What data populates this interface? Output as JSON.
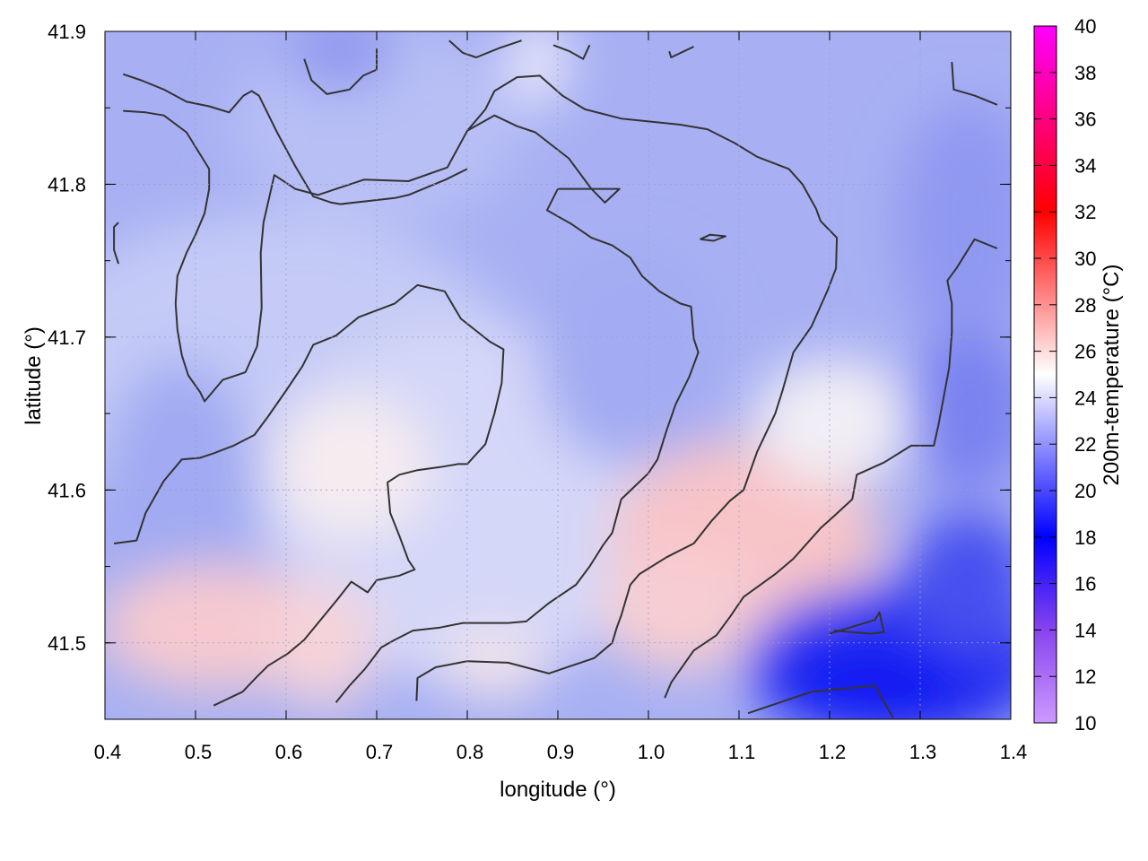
{
  "chart_data": {
    "type": "heatmap",
    "xlabel": "longitude (°)",
    "ylabel": "latitude (°)",
    "colorbar_label": "200m-temperature (°C)",
    "xlim": [
      0.4,
      1.4
    ],
    "ylim": [
      41.45,
      41.9
    ],
    "x_ticks": [
      "0.4",
      "0.5",
      "0.6",
      "0.7",
      "0.8",
      "0.9",
      "1.0",
      "1.1",
      "1.2",
      "1.3",
      "1.4"
    ],
    "y_ticks": [
      "41.5",
      "41.6",
      "41.7",
      "41.8",
      "41.9"
    ],
    "x_tick_values": [
      0.4,
      0.5,
      0.6,
      0.7,
      0.8,
      0.9,
      1.0,
      1.1,
      1.2,
      1.3,
      1.4
    ],
    "y_tick_values": [
      41.5,
      41.6,
      41.7,
      41.8,
      41.9
    ],
    "colorbar_range": [
      10,
      40
    ],
    "colorbar_ticks": [
      "10",
      "12",
      "14",
      "16",
      "18",
      "20",
      "22",
      "24",
      "26",
      "28",
      "30",
      "32",
      "34",
      "36",
      "38",
      "40"
    ],
    "colorbar_tick_values": [
      10,
      12,
      14,
      16,
      18,
      20,
      22,
      24,
      26,
      28,
      30,
      32,
      34,
      36,
      38,
      40
    ],
    "colormap_stops": [
      {
        "value": 10,
        "color": "#cc99ff"
      },
      {
        "value": 14,
        "color": "#8844ee"
      },
      {
        "value": 18,
        "color": "#0000ff"
      },
      {
        "value": 25,
        "color": "#ffffff"
      },
      {
        "value": 32,
        "color": "#ff0000"
      },
      {
        "value": 40,
        "color": "#ff00ff"
      }
    ],
    "grid": true,
    "approx_field_summary": [
      {
        "region": "north and west",
        "value_range": [
          20,
          22
        ]
      },
      {
        "region": "central basin",
        "value_range": [
          22,
          24
        ]
      },
      {
        "region": "southwest ridges",
        "value_range": [
          25,
          27
        ]
      },
      {
        "region": "central-south band (lon 0.95-1.15)",
        "value_range": [
          26,
          27
        ]
      },
      {
        "region": "southeast corner",
        "value_range": [
          17,
          19
        ]
      }
    ],
    "contour_color": "#333333",
    "contours": [
      [
        [
          0.42,
          41.872
        ],
        [
          0.44,
          41.868
        ],
        [
          0.465,
          41.862
        ],
        [
          0.49,
          41.854
        ],
        [
          0.515,
          41.851
        ],
        [
          0.537,
          41.847
        ],
        [
          0.553,
          41.858
        ],
        [
          0.562,
          41.861
        ],
        [
          0.57,
          41.858
        ],
        [
          0.59,
          41.834
        ],
        [
          0.61,
          41.812
        ],
        [
          0.63,
          41.792
        ],
        [
          0.65,
          41.788
        ],
        [
          0.66,
          41.787
        ],
        [
          0.72,
          41.791
        ],
        [
          0.735,
          41.793
        ],
        [
          0.776,
          41.803
        ],
        [
          0.8,
          41.81
        ],
        [
          0.8,
          41.81
        ]
      ],
      [
        [
          0.62,
          41.882
        ],
        [
          0.628,
          41.868
        ],
        [
          0.645,
          41.859
        ],
        [
          0.67,
          41.862
        ],
        [
          0.685,
          41.871
        ],
        [
          0.7,
          41.875
        ],
        [
          0.7,
          41.889
        ]
      ],
      [
        [
          0.78,
          41.894
        ],
        [
          0.795,
          41.886
        ],
        [
          0.81,
          41.883
        ],
        [
          0.835,
          41.889
        ],
        [
          0.86,
          41.894
        ]
      ],
      [
        [
          0.895,
          41.891
        ],
        [
          0.913,
          41.887
        ],
        [
          0.928,
          41.882
        ],
        [
          0.935,
          41.891
        ]
      ],
      [
        [
          1.023,
          41.887
        ],
        [
          1.025,
          41.883
        ],
        [
          1.05,
          41.89
        ]
      ],
      [
        [
          0.42,
          41.848
        ],
        [
          0.445,
          41.847
        ],
        [
          0.465,
          41.845
        ],
        [
          0.49,
          41.834
        ],
        [
          0.515,
          41.81
        ],
        [
          0.515,
          41.797
        ],
        [
          0.51,
          41.781
        ],
        [
          0.5,
          41.767
        ],
        [
          0.49,
          41.755
        ],
        [
          0.48,
          41.74
        ],
        [
          0.478,
          41.722
        ],
        [
          0.48,
          41.705
        ],
        [
          0.482,
          41.698
        ],
        [
          0.485,
          41.688
        ],
        [
          0.492,
          41.675
        ],
        [
          0.505,
          41.664
        ],
        [
          0.51,
          41.658
        ],
        [
          0.53,
          41.672
        ],
        [
          0.555,
          41.677
        ],
        [
          0.568,
          41.694
        ],
        [
          0.573,
          41.719
        ],
        [
          0.572,
          41.755
        ],
        [
          0.575,
          41.775
        ],
        [
          0.587,
          41.806
        ],
        [
          0.61,
          41.797
        ],
        [
          0.635,
          41.793
        ],
        [
          0.686,
          41.803
        ],
        [
          0.735,
          41.802
        ],
        [
          0.778,
          41.811
        ],
        [
          0.8,
          41.835
        ],
        [
          0.83,
          41.845
        ],
        [
          0.855,
          41.838
        ],
        [
          0.875,
          41.834
        ],
        [
          0.912,
          41.817
        ],
        [
          0.937,
          41.797
        ],
        [
          0.952,
          41.788
        ],
        [
          0.968,
          41.797
        ],
        [
          0.948,
          41.797
        ],
        [
          0.9,
          41.797
        ],
        [
          0.888,
          41.783
        ],
        [
          0.915,
          41.774
        ],
        [
          0.937,
          41.765
        ],
        [
          0.96,
          41.76
        ],
        [
          0.98,
          41.752
        ],
        [
          0.993,
          41.74
        ],
        [
          1.012,
          41.73
        ],
        [
          1.035,
          41.722
        ],
        [
          1.047,
          41.72
        ],
        [
          1.05,
          41.699
        ],
        [
          1.055,
          41.69
        ],
        [
          1.045,
          41.674
        ],
        [
          1.03,
          41.656
        ],
        [
          1.02,
          41.639
        ],
        [
          1.01,
          41.62
        ],
        [
          1.0,
          41.611
        ],
        [
          0.97,
          41.594
        ],
        [
          0.96,
          41.572
        ],
        [
          0.95,
          41.564
        ],
        [
          0.935,
          41.55
        ],
        [
          0.92,
          41.538
        ],
        [
          0.89,
          41.526
        ],
        [
          0.865,
          41.514
        ],
        [
          0.845,
          41.513
        ],
        [
          0.795,
          41.513
        ],
        [
          0.77,
          41.51
        ],
        [
          0.74,
          41.508
        ],
        [
          0.72,
          41.502
        ],
        [
          0.705,
          41.497
        ],
        [
          0.687,
          41.483
        ],
        [
          0.67,
          41.472
        ],
        [
          0.655,
          41.461
        ]
      ],
      [
        [
          0.41,
          41.565
        ],
        [
          0.435,
          41.567
        ],
        [
          0.445,
          41.585
        ],
        [
          0.465,
          41.606
        ],
        [
          0.485,
          41.62
        ],
        [
          0.505,
          41.621
        ],
        [
          0.52,
          41.624
        ],
        [
          0.542,
          41.629
        ],
        [
          0.565,
          41.636
        ],
        [
          0.58,
          41.648
        ],
        [
          0.6,
          41.665
        ],
        [
          0.618,
          41.681
        ],
        [
          0.63,
          41.695
        ],
        [
          0.655,
          41.701
        ],
        [
          0.68,
          41.713
        ],
        [
          0.72,
          41.722
        ],
        [
          0.745,
          41.734
        ],
        [
          0.775,
          41.73
        ],
        [
          0.793,
          41.712
        ],
        [
          0.825,
          41.697
        ],
        [
          0.84,
          41.692
        ],
        [
          0.838,
          41.67
        ],
        [
          0.83,
          41.65
        ],
        [
          0.82,
          41.63
        ],
        [
          0.8,
          41.617
        ],
        [
          0.79,
          41.617
        ],
        [
          0.77,
          41.615
        ],
        [
          0.745,
          41.613
        ],
        [
          0.725,
          41.61
        ],
        [
          0.712,
          41.605
        ],
        [
          0.715,
          41.585
        ],
        [
          0.725,
          41.57
        ],
        [
          0.735,
          41.554
        ],
        [
          0.742,
          41.548
        ],
        [
          0.725,
          41.544
        ],
        [
          0.7,
          41.541
        ],
        [
          0.69,
          41.533
        ],
        [
          0.672,
          41.54
        ],
        [
          0.656,
          41.528
        ],
        [
          0.62,
          41.502
        ],
        [
          0.602,
          41.493
        ],
        [
          0.58,
          41.485
        ],
        [
          0.568,
          41.478
        ],
        [
          0.552,
          41.468
        ],
        [
          0.52,
          41.459
        ]
      ],
      [
        [
          0.744,
          41.462
        ],
        [
          0.745,
          41.477
        ],
        [
          0.765,
          41.484
        ],
        [
          0.8,
          41.488
        ],
        [
          0.845,
          41.487
        ],
        [
          0.89,
          41.48
        ],
        [
          0.925,
          41.487
        ],
        [
          0.94,
          41.49
        ],
        [
          0.96,
          41.5
        ],
        [
          0.965,
          41.51
        ],
        [
          0.97,
          41.518
        ],
        [
          0.98,
          41.538
        ],
        [
          0.99,
          41.545
        ],
        [
          1.02,
          41.556
        ],
        [
          1.05,
          41.565
        ],
        [
          1.07,
          41.58
        ],
        [
          1.09,
          41.593
        ],
        [
          1.105,
          41.6
        ],
        [
          1.12,
          41.625
        ],
        [
          1.14,
          41.65
        ],
        [
          1.148,
          41.665
        ],
        [
          1.16,
          41.69
        ],
        [
          1.18,
          41.707
        ],
        [
          1.198,
          41.731
        ],
        [
          1.207,
          41.745
        ],
        [
          1.208,
          41.765
        ],
        [
          1.19,
          41.776
        ],
        [
          1.185,
          41.784
        ],
        [
          1.17,
          41.8
        ],
        [
          1.155,
          41.81
        ],
        [
          1.12,
          41.818
        ],
        [
          1.095,
          41.827
        ],
        [
          1.065,
          41.836
        ],
        [
          1.035,
          41.839
        ],
        [
          0.97,
          41.843
        ],
        [
          0.93,
          41.849
        ],
        [
          0.905,
          41.858
        ],
        [
          0.88,
          41.871
        ],
        [
          0.855,
          41.87
        ],
        [
          0.83,
          41.861
        ],
        [
          0.82,
          41.849
        ],
        [
          0.8,
          41.835
        ]
      ],
      [
        [
          1.018,
          41.464
        ],
        [
          1.025,
          41.474
        ],
        [
          1.05,
          41.495
        ],
        [
          1.075,
          41.505
        ],
        [
          1.09,
          41.517
        ],
        [
          1.105,
          41.53
        ],
        [
          1.14,
          41.545
        ],
        [
          1.16,
          41.555
        ],
        [
          1.19,
          41.575
        ],
        [
          1.205,
          41.583
        ],
        [
          1.225,
          41.594
        ],
        [
          1.23,
          41.61
        ],
        [
          1.26,
          41.618
        ],
        [
          1.29,
          41.629
        ],
        [
          1.315,
          41.629
        ],
        [
          1.32,
          41.642
        ],
        [
          1.325,
          41.658
        ],
        [
          1.332,
          41.68
        ],
        [
          1.335,
          41.703
        ],
        [
          1.335,
          41.722
        ],
        [
          1.33,
          41.737
        ],
        [
          1.34,
          41.745
        ],
        [
          1.36,
          41.764
        ],
        [
          1.385,
          41.758
        ]
      ],
      [
        [
          1.2,
          41.506
        ],
        [
          1.25,
          41.515
        ],
        [
          1.255,
          41.52
        ],
        [
          1.26,
          41.507
        ],
        [
          1.245,
          41.506
        ],
        [
          1.205,
          41.508
        ]
      ],
      [
        [
          1.11,
          41.454
        ],
        [
          1.18,
          41.468
        ],
        [
          1.25,
          41.472
        ],
        [
          1.27,
          41.451
        ]
      ],
      [
        [
          1.057,
          41.764
        ],
        [
          1.068,
          41.767
        ],
        [
          1.085,
          41.766
        ],
        [
          1.072,
          41.763
        ],
        [
          1.057,
          41.764
        ]
      ],
      [
        [
          1.335,
          41.88
        ],
        [
          1.337,
          41.862
        ],
        [
          1.36,
          41.858
        ],
        [
          1.385,
          41.852
        ]
      ],
      [
        [
          0.415,
          41.748
        ],
        [
          0.41,
          41.757
        ],
        [
          0.41,
          41.772
        ],
        [
          0.415,
          41.775
        ]
      ]
    ]
  }
}
